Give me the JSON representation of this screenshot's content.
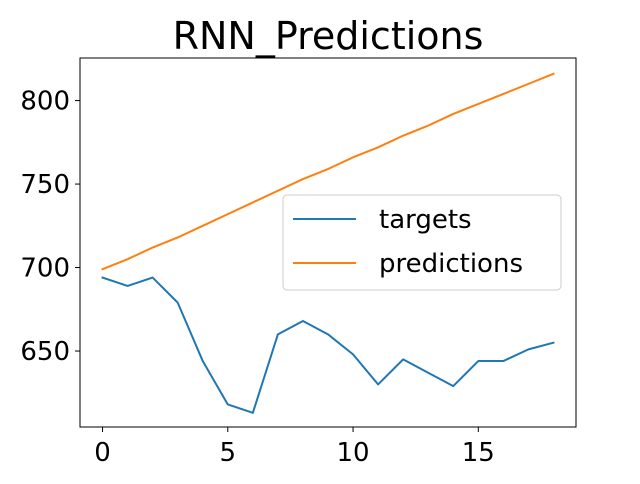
{
  "chart_data": {
    "type": "line",
    "title": "RNN_Predictions",
    "xlabel": "",
    "ylabel": "",
    "xlim": [
      -0.9,
      18.9
    ],
    "ylim": [
      604.5,
      825.5
    ],
    "x_ticks": [
      0,
      5,
      10,
      15
    ],
    "y_ticks": [
      650,
      700,
      750,
      800
    ],
    "x_tick_labels": [
      "0",
      "5",
      "10",
      "15"
    ],
    "y_tick_labels": [
      "650",
      "700",
      "750",
      "800"
    ],
    "grid": false,
    "legend_position": "center-right",
    "x": [
      0,
      1,
      2,
      3,
      4,
      5,
      6,
      7,
      8,
      9,
      10,
      11,
      12,
      13,
      14,
      15,
      16,
      17,
      18
    ],
    "series": [
      {
        "name": "targets",
        "color": "#1f77b4",
        "values": [
          694,
          689,
          694,
          679,
          644,
          618,
          613,
          660,
          668,
          660,
          648,
          630,
          645,
          637,
          629,
          644,
          644,
          651,
          655
        ]
      },
      {
        "name": "predictions",
        "color": "#ff7f0e",
        "values": [
          699,
          705,
          712,
          718,
          725,
          732,
          739,
          746,
          753,
          759,
          766,
          772,
          779,
          785,
          792,
          798,
          804,
          810,
          816
        ]
      }
    ]
  }
}
